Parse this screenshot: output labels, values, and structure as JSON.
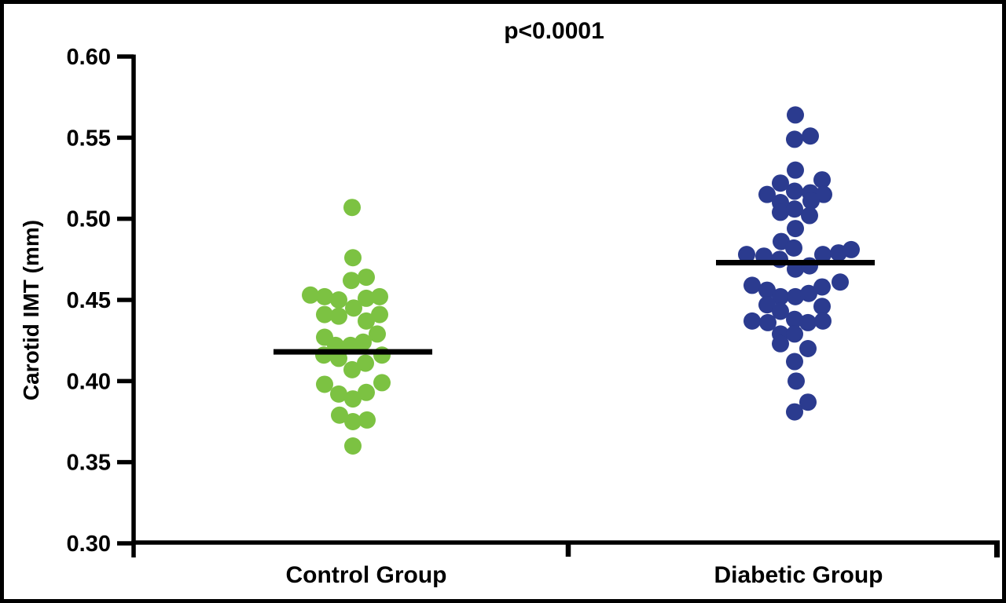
{
  "figure": {
    "background_color": "#ffffff",
    "border_color": "#000000",
    "axis_color": "#000000",
    "text_color": "#000000"
  },
  "chart_data": {
    "type": "scatter",
    "subtype": "column-dot-plot-with-mean-lines",
    "title": "p<0.0001",
    "xlabel": "",
    "ylabel": "Carotid IMT (mm)",
    "ylim": [
      0.3,
      0.6
    ],
    "yticks": [
      0.6,
      0.55,
      0.5,
      0.45,
      0.4,
      0.35,
      0.3
    ],
    "grid": "off",
    "legend": "none",
    "categories": [
      "Control Group",
      "Diabetic Group"
    ],
    "groups": [
      {
        "label": "Control Group",
        "color": "#7CC242",
        "n": 33,
        "mean": 0.418,
        "points": [
          [
            -1,
            0.507
          ],
          [
            0,
            0.476
          ],
          [
            -2,
            0.462
          ],
          [
            17,
            0.464
          ],
          [
            -54,
            0.453
          ],
          [
            -36,
            0.452
          ],
          [
            -18,
            0.45
          ],
          [
            17,
            0.451
          ],
          [
            34,
            0.452
          ],
          [
            -36,
            0.441
          ],
          [
            -18,
            0.44
          ],
          [
            1,
            0.445
          ],
          [
            17,
            0.437
          ],
          [
            34,
            0.441
          ],
          [
            -36,
            0.427
          ],
          [
            -22,
            0.422
          ],
          [
            -3,
            0.422
          ],
          [
            13,
            0.424
          ],
          [
            31,
            0.429
          ],
          [
            -37,
            0.416
          ],
          [
            -18,
            0.414
          ],
          [
            37,
            0.416
          ],
          [
            -1,
            0.407
          ],
          [
            16,
            0.411
          ],
          [
            -36,
            0.398
          ],
          [
            37,
            0.399
          ],
          [
            -18,
            0.392
          ],
          [
            0,
            0.389
          ],
          [
            17,
            0.393
          ],
          [
            -17,
            0.379
          ],
          [
            0,
            0.375
          ],
          [
            18,
            0.376
          ],
          [
            0,
            0.36
          ]
        ]
      },
      {
        "label": "Diabetic Group",
        "color": "#2B3B8F",
        "n": 49,
        "mean": 0.473,
        "points": [
          [
            0,
            0.564
          ],
          [
            -1,
            0.549
          ],
          [
            19,
            0.551
          ],
          [
            0,
            0.53
          ],
          [
            -19,
            0.522
          ],
          [
            34,
            0.524
          ],
          [
            -36,
            0.515
          ],
          [
            -1,
            0.517
          ],
          [
            19,
            0.516
          ],
          [
            36,
            0.515
          ],
          [
            -19,
            0.51
          ],
          [
            20,
            0.511
          ],
          [
            -19,
            0.504
          ],
          [
            -1,
            0.506
          ],
          [
            18,
            0.502
          ],
          [
            0,
            0.494
          ],
          [
            -18,
            0.486
          ],
          [
            -62,
            0.478
          ],
          [
            -40,
            0.477
          ],
          [
            -20,
            0.475
          ],
          [
            -2,
            0.482
          ],
          [
            35,
            0.478
          ],
          [
            55,
            0.479
          ],
          [
            71,
            0.481
          ],
          [
            0,
            0.469
          ],
          [
            18,
            0.471
          ],
          [
            -55,
            0.459
          ],
          [
            57,
            0.461
          ],
          [
            -36,
            0.456
          ],
          [
            -19,
            0.452
          ],
          [
            0,
            0.452
          ],
          [
            17,
            0.454
          ],
          [
            34,
            0.458
          ],
          [
            -36,
            0.447
          ],
          [
            -19,
            0.443
          ],
          [
            34,
            0.446
          ],
          [
            -55,
            0.437
          ],
          [
            -35,
            0.436
          ],
          [
            -1,
            0.438
          ],
          [
            16,
            0.436
          ],
          [
            35,
            0.437
          ],
          [
            -19,
            0.429
          ],
          [
            -1,
            0.429
          ],
          [
            -19,
            0.423
          ],
          [
            16,
            0.42
          ],
          [
            -1,
            0.412
          ],
          [
            1,
            0.4
          ],
          [
            16,
            0.387
          ],
          [
            -1,
            0.381
          ]
        ]
      }
    ]
  }
}
